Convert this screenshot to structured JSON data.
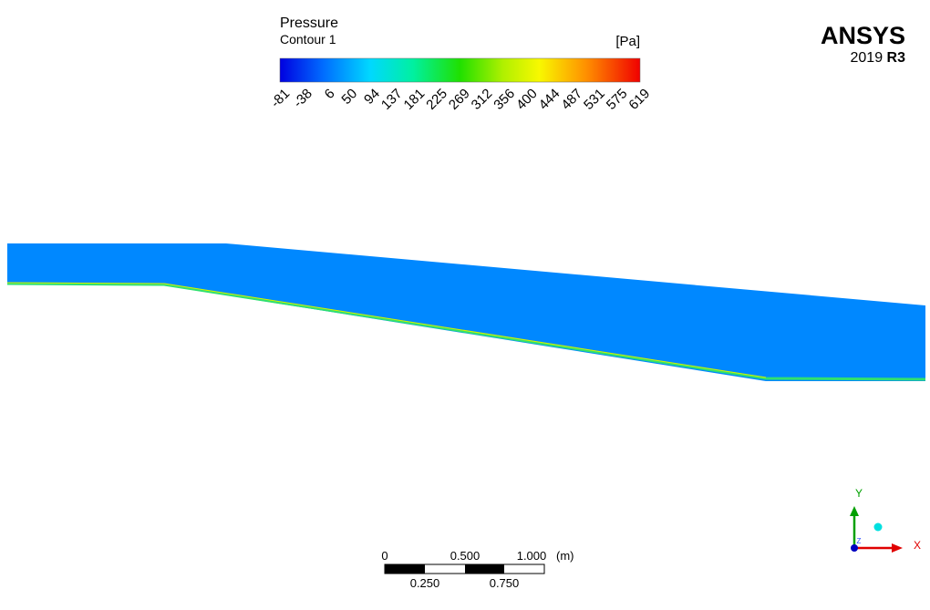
{
  "legend": {
    "title": "Pressure",
    "subtitle": "Contour 1",
    "unit": "[Pa]",
    "ticks": [
      "-81",
      "-38",
      "6",
      "50",
      "94",
      "137",
      "181",
      "225",
      "269",
      "312",
      "356",
      "400",
      "444",
      "487",
      "531",
      "575",
      "619"
    ]
  },
  "logo": {
    "name": "ANSYS",
    "year": "2019",
    "release": "R3"
  },
  "scale_bar": {
    "top_labels": [
      "0",
      "0.500",
      "1.000"
    ],
    "unit": "(m)",
    "bottom_labels": [
      "0.250",
      "0.750"
    ]
  },
  "axes": {
    "y": "Y",
    "x": "X",
    "z": "Z"
  }
}
